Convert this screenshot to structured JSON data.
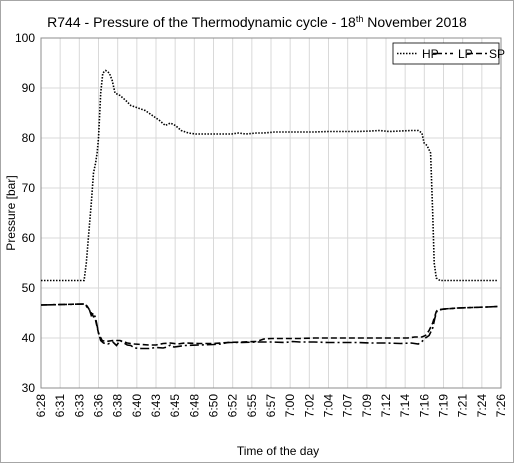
{
  "chart_data": {
    "type": "line",
    "title": "R744 - Pressure of the Thermodynamic cycle - 18",
    "title_superscript": "th",
    "title_suffix": " November 2018",
    "xlabel": "Time of the day",
    "ylabel": "Pressure [bar]",
    "ylim": [
      30,
      100
    ],
    "y_ticks": [
      30,
      40,
      50,
      60,
      70,
      80,
      90,
      100
    ],
    "x_ticks": [
      "6:28",
      "6:31",
      "6:33",
      "6:36",
      "6:38",
      "6:40",
      "6:43",
      "6:45",
      "6:48",
      "6:50",
      "6:52",
      "6:55",
      "6:57",
      "7:00",
      "7:02",
      "7:04",
      "7:07",
      "7:09",
      "7:12",
      "7:14",
      "7:16",
      "7:19",
      "7:21",
      "7:24",
      "7:26"
    ],
    "grid": true,
    "legend_position": "top-right",
    "series": [
      {
        "name": "HP",
        "dash": "dotted",
        "points": [
          [
            0,
            51.5
          ],
          [
            6,
            51.5
          ],
          [
            6.3,
            55
          ],
          [
            6.7,
            62
          ],
          [
            7.0,
            67
          ],
          [
            7.3,
            73
          ],
          [
            7.6,
            75
          ],
          [
            7.8,
            77
          ],
          [
            8.0,
            80
          ],
          [
            8.3,
            89
          ],
          [
            8.6,
            93
          ],
          [
            9.0,
            93.5
          ],
          [
            9.5,
            93
          ],
          [
            9.9,
            91.5
          ],
          [
            10.3,
            89
          ],
          [
            11,
            88.5
          ],
          [
            11.8,
            87.5
          ],
          [
            12.5,
            86.5
          ],
          [
            13.5,
            86
          ],
          [
            14.5,
            85.5
          ],
          [
            15.5,
            84.5
          ],
          [
            16.5,
            83.5
          ],
          [
            17.3,
            82.5
          ],
          [
            18,
            83
          ],
          [
            18.7,
            82.5
          ],
          [
            19.5,
            81.5
          ],
          [
            20.5,
            81
          ],
          [
            21.5,
            80.8
          ],
          [
            23,
            80.8
          ],
          [
            25,
            80.8
          ],
          [
            26.5,
            80.8
          ],
          [
            27.5,
            81
          ],
          [
            28.5,
            80.8
          ],
          [
            30,
            81
          ],
          [
            31,
            81
          ],
          [
            32.5,
            81.2
          ],
          [
            34,
            81.2
          ],
          [
            36,
            81.2
          ],
          [
            38,
            81.2
          ],
          [
            40,
            81.3
          ],
          [
            42,
            81.3
          ],
          [
            44,
            81.3
          ],
          [
            46,
            81.4
          ],
          [
            47,
            81.5
          ],
          [
            48.5,
            81.3
          ],
          [
            50,
            81.4
          ],
          [
            51.5,
            81.5
          ],
          [
            52.5,
            81.5
          ],
          [
            53,
            81
          ],
          [
            53.3,
            79
          ],
          [
            53.7,
            78.5
          ],
          [
            54.2,
            77
          ],
          [
            54.5,
            65
          ],
          [
            54.7,
            55
          ],
          [
            55.0,
            52
          ],
          [
            55.5,
            51.5
          ],
          [
            57,
            51.5
          ],
          [
            60,
            51.5
          ],
          [
            62,
            51.5
          ],
          [
            63.5,
            51.5
          ]
        ]
      },
      {
        "name": "LP",
        "dash": "dash-dot",
        "points": [
          [
            0,
            46.6
          ],
          [
            3,
            46.7
          ],
          [
            6,
            46.8
          ],
          [
            6.4,
            46.2
          ],
          [
            6.7,
            45.8
          ],
          [
            7.0,
            44.5
          ],
          [
            7.3,
            45
          ],
          [
            7.6,
            44
          ],
          [
            8.0,
            41
          ],
          [
            8.3,
            39.5
          ],
          [
            8.7,
            39
          ],
          [
            9.3,
            38.8
          ],
          [
            10,
            39.2
          ],
          [
            10.5,
            38.5
          ],
          [
            11,
            39.5
          ],
          [
            12,
            38.6
          ],
          [
            12.5,
            38.5
          ],
          [
            13,
            38
          ],
          [
            14,
            37.9
          ],
          [
            15,
            37.9
          ],
          [
            16,
            38.1
          ],
          [
            17,
            38
          ],
          [
            17.5,
            38.2
          ],
          [
            18,
            38.6
          ],
          [
            18.5,
            38.2
          ],
          [
            20,
            38.5
          ],
          [
            22,
            38.6
          ],
          [
            24,
            38.7
          ],
          [
            25,
            38.8
          ],
          [
            26,
            39.1
          ],
          [
            28,
            39.1
          ],
          [
            30,
            39.2
          ],
          [
            32,
            39.2
          ],
          [
            34,
            39.1
          ],
          [
            35,
            39.3
          ],
          [
            36,
            39.2
          ],
          [
            38,
            39.2
          ],
          [
            40,
            39.1
          ],
          [
            42,
            39.1
          ],
          [
            44,
            39.1
          ],
          [
            46,
            39
          ],
          [
            48,
            39
          ],
          [
            50,
            38.9
          ],
          [
            51.5,
            39
          ],
          [
            52.5,
            38.8
          ],
          [
            53,
            39.3
          ],
          [
            53.5,
            40
          ],
          [
            54,
            40.5
          ],
          [
            54.5,
            42
          ],
          [
            54.8,
            44
          ],
          [
            55.1,
            45.5
          ],
          [
            56,
            45.8
          ],
          [
            58,
            46.0
          ],
          [
            60,
            46.1
          ],
          [
            62,
            46.2
          ],
          [
            63.5,
            46.3
          ]
        ]
      },
      {
        "name": "SP",
        "dash": "dashed",
        "points": [
          [
            0,
            46.6
          ],
          [
            3,
            46.7
          ],
          [
            6,
            46.8
          ],
          [
            6.4,
            46.4
          ],
          [
            6.8,
            45.5
          ],
          [
            7.2,
            44.5
          ],
          [
            7.6,
            43.5
          ],
          [
            8.0,
            41
          ],
          [
            8.5,
            39.5
          ],
          [
            9.0,
            39.3
          ],
          [
            10,
            39.5
          ],
          [
            11,
            39.5
          ],
          [
            12,
            39
          ],
          [
            13,
            38.8
          ],
          [
            14,
            38.7
          ],
          [
            15,
            38.6
          ],
          [
            16,
            38.6
          ],
          [
            17,
            38.9
          ],
          [
            18,
            39
          ],
          [
            19,
            38.8
          ],
          [
            20,
            39
          ],
          [
            22,
            38.9
          ],
          [
            24,
            38.9
          ],
          [
            26,
            39.1
          ],
          [
            28,
            39.2
          ],
          [
            30,
            39.3
          ],
          [
            31,
            39.8
          ],
          [
            32,
            39.9
          ],
          [
            34,
            39.9
          ],
          [
            36,
            39.9
          ],
          [
            38,
            40
          ],
          [
            40,
            40
          ],
          [
            42,
            40
          ],
          [
            44,
            40
          ],
          [
            46,
            40
          ],
          [
            48,
            40
          ],
          [
            50,
            40
          ],
          [
            51,
            40
          ],
          [
            52,
            40.2
          ],
          [
            53,
            40.2
          ],
          [
            53.5,
            40.5
          ],
          [
            54,
            41.5
          ],
          [
            54.5,
            43
          ],
          [
            55,
            45.3
          ],
          [
            55.5,
            45.7
          ],
          [
            58,
            46.0
          ],
          [
            60,
            46.1
          ],
          [
            62,
            46.2
          ],
          [
            63.5,
            46.3
          ]
        ]
      }
    ]
  }
}
